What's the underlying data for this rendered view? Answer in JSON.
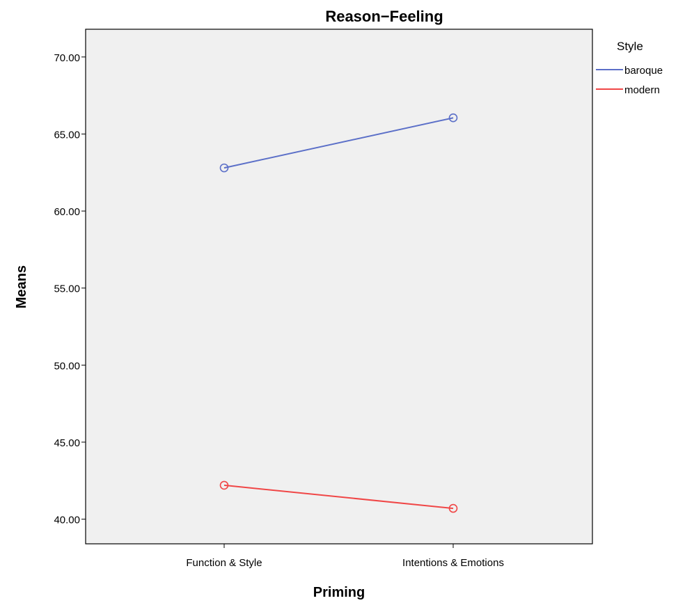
{
  "chart_data": {
    "type": "line",
    "title": "Reason−Feeling",
    "xlabel": "Priming",
    "ylabel": "Means",
    "categories": [
      "Function & Style",
      "Intentions & Emotions"
    ],
    "ylim": [
      38.4,
      71.8
    ],
    "yticks": [
      "40.00",
      "45.00",
      "50.00",
      "55.00",
      "60.00",
      "65.00",
      "70.00"
    ],
    "grid": false,
    "legend": {
      "title": "Style",
      "position": "top-right",
      "entries": [
        "baroque",
        "modern"
      ]
    },
    "series": [
      {
        "name": "baroque",
        "values": [
          62.8,
          66.05
        ],
        "color": "#5b6fc8"
      },
      {
        "name": "modern",
        "values": [
          42.2,
          40.7
        ],
        "color": "#f04646"
      }
    ],
    "plot_background": "#f0f0f0"
  }
}
